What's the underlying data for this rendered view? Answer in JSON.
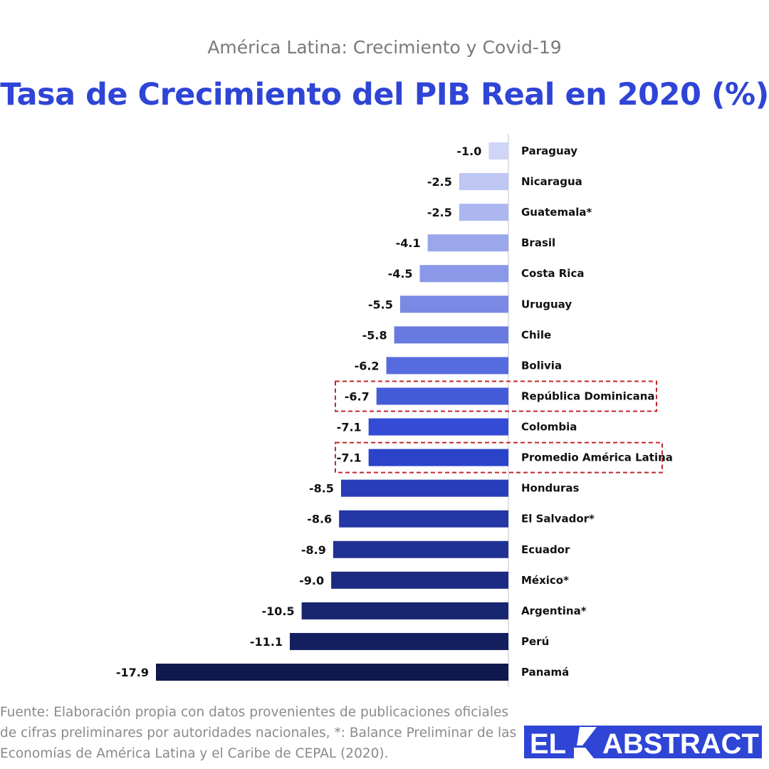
{
  "subtitle": "América Latina: Crecimiento y Covid-19",
  "title": "Tasa de Crecimiento del PIB Real en 2020 (%)",
  "source": "Fuente: Elaboración propia con datos provenientes de publicaciones oficiales de cifras preliminares por autoridades nacionales, *: Balance Preliminar de las Economías de América Latina y el Caribe de CEPAL (2020).",
  "logo": {
    "left": "EL",
    "right": "ABSTRACT"
  },
  "colors": {
    "title": "#2f45d6",
    "highlight_box": "#c0272d",
    "bar_light": "#cfd5f6",
    "bar_mid": "#2e47d4",
    "bar_dark": "#10194d",
    "logo": "#2f45d6"
  },
  "chart_data": {
    "type": "bar",
    "orientation": "horizontal",
    "categories": [
      "Paraguay",
      "Nicaragua",
      "Guatemala*",
      "Brasil",
      "Costa Rica",
      "Uruguay",
      "Chile",
      "Bolivia",
      "República Dominicana",
      "Colombia",
      "Promedio América Latina",
      "Honduras",
      "El Salvador*",
      "Ecuador",
      "México*",
      "Argentina*",
      "Perú",
      "Panamá"
    ],
    "values": [
      -1.0,
      -2.5,
      -2.5,
      -4.1,
      -4.5,
      -5.5,
      -5.8,
      -6.2,
      -6.7,
      -7.1,
      -7.1,
      -8.5,
      -8.6,
      -8.9,
      -9.0,
      -10.5,
      -11.1,
      -17.9
    ],
    "value_labels": [
      "-1.0",
      "-2.5",
      "-2.5",
      "-4.1",
      "-4.5",
      "-5.5",
      "-5.8",
      "-6.2",
      "-6.7",
      "-7.1",
      "-7.1",
      "-8.5",
      "-8.6",
      "-8.9",
      "-9.0",
      "-10.5",
      "-11.1",
      "-17.9"
    ],
    "highlighted": [
      "República Dominicana",
      "Promedio América Latina"
    ],
    "xlim": [
      -17.9,
      0
    ],
    "grid": false,
    "legend": "none"
  }
}
